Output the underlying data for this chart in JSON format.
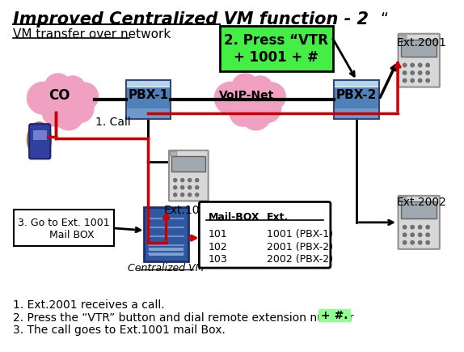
{
  "title": "Improved Centralized VM function - 2",
  "subtitle": "VM transfer over network",
  "quote_mark": "“",
  "bg_color": "#ffffff",
  "title_color": "#000000",
  "title_fontsize": 15,
  "subtitle_fontsize": 11,
  "co_color": "#f0a0c0",
  "pbx_color_top": "#a0c0e0",
  "pbx_color_mid": "#5080b0",
  "pbx_color_bot": "#6090c0",
  "voip_color": "#f0a0c0",
  "arrow_black": "#000000",
  "arrow_red": "#cc0000",
  "green_box_color": "#44ee44",
  "green_box_text": "2. Press “VTR\n+ 1001 + #",
  "step1_text": "1. Call",
  "step3_text": "3. Go to Ext. 1001\n     Mail BOX",
  "ext1001_text": "Ext.1001",
  "ext2001_text": "Ext.2001",
  "ext2002_text": "Ext.2002",
  "centralized_vm_text": "Centralized VM",
  "mailbox_col1": "Mail-BOX",
  "mailbox_col2": "Ext.",
  "mailbox_rows": [
    [
      "101",
      "1001 (PBX-1)"
    ],
    [
      "102",
      "2001 (PBX-2)"
    ],
    [
      "103",
      "2002 (PBX-2)"
    ]
  ],
  "footnote1": "1. Ext.2001 receives a call.",
  "footnote2": "2. Press the “VTR” button and dial remote extension number",
  "footnote2_highlight": "+ #.",
  "footnote3": "3. The call goes to Ext.1001 mail Box.",
  "pbx1_label": "PBX-1",
  "pbx2_label": "PBX-2",
  "voip_label": "VoIP-Net",
  "co_label": "CO"
}
